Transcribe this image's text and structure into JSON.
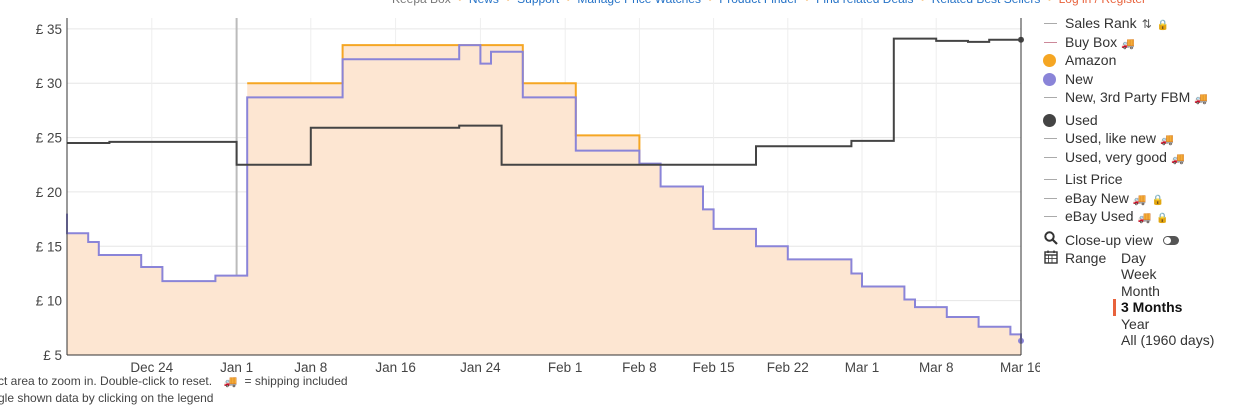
{
  "topnav": {
    "items": [
      "Keepa Box",
      "News",
      "Support",
      "Manage Price Watches",
      "Product Finder",
      "Find related Deals",
      "Related Best Sellers",
      "Log in / Register"
    ]
  },
  "hints": {
    "line1_text": "ct area to zoom in. Double-click to reset.",
    "shipping_text": "= shipping included",
    "line2_text": "gle shown data by clicking on the legend"
  },
  "legend": {
    "items": [
      {
        "id": "sales-rank",
        "label": "Sales Rank",
        "symbol": "line",
        "color": "#aaaaaa",
        "sort_icon": true,
        "lock": true
      },
      {
        "id": "buy-box",
        "label": "Buy Box",
        "symbol": "line",
        "color": "#cc8899",
        "truck": true
      },
      {
        "id": "amazon",
        "label": "Amazon",
        "symbol": "dot",
        "color": "#f5a623"
      },
      {
        "id": "new",
        "label": "New",
        "symbol": "dot",
        "color": "#8a84d8"
      },
      {
        "id": "new-3rd-fbm",
        "label": "New, 3rd Party FBM",
        "symbol": "line",
        "color": "#aaaaaa",
        "truck": true
      },
      {
        "id": "used",
        "label": "Used",
        "symbol": "dot",
        "color": "#444444",
        "gap_before": true
      },
      {
        "id": "used-like-new",
        "label": "Used, like new",
        "symbol": "line",
        "color": "#aaaaaa",
        "truck": true
      },
      {
        "id": "used-very-good",
        "label": "Used, very good",
        "symbol": "line",
        "color": "#aaaaaa",
        "truck": true
      },
      {
        "id": "list-price",
        "label": "List Price",
        "symbol": "line",
        "color": "#aaaaaa",
        "gap_before": true
      },
      {
        "id": "ebay-new",
        "label": "eBay New",
        "symbol": "line",
        "color": "#aaaaaa",
        "truck": true,
        "lock": true
      },
      {
        "id": "ebay-used",
        "label": "eBay Used",
        "symbol": "line",
        "color": "#aaaaaa",
        "truck": true,
        "lock": true
      }
    ],
    "closeup_label": "Close-up view",
    "range_label": "Range",
    "range_options": [
      "Day",
      "Week",
      "Month",
      "3 Months",
      "Year",
      "All (1960 days)"
    ],
    "range_selected": "3 Months"
  },
  "chart_data": {
    "type": "line",
    "currency": "£",
    "x_unit": "date",
    "x_range": [
      "2018-12-16",
      "2019-03-16"
    ],
    "ylim": [
      5,
      36
    ],
    "y_ticks": [
      5,
      10,
      15,
      20,
      25,
      30,
      35
    ],
    "y_tick_labels": [
      "£ 5",
      "£ 10",
      "£ 15",
      "£ 20",
      "£ 25",
      "£ 30",
      "£ 35"
    ],
    "x_ticks": [
      {
        "date": "2018-12-24",
        "label": "Dec 24"
      },
      {
        "date": "2019-01-01",
        "label": "Jan 1"
      },
      {
        "date": "2019-01-08",
        "label": "Jan 8"
      },
      {
        "date": "2019-01-16",
        "label": "Jan 16"
      },
      {
        "date": "2019-01-24",
        "label": "Jan 24"
      },
      {
        "date": "2019-02-01",
        "label": "Feb 1"
      },
      {
        "date": "2019-02-08",
        "label": "Feb 8"
      },
      {
        "date": "2019-02-15",
        "label": "Feb 15"
      },
      {
        "date": "2019-02-22",
        "label": "Feb 22"
      },
      {
        "date": "2019-03-01",
        "label": "Mar 1"
      },
      {
        "date": "2019-03-08",
        "label": "Mar 8"
      },
      {
        "date": "2019-03-16",
        "label": "Mar 16"
      }
    ],
    "marker_line_date": "2019-01-01",
    "grid": true,
    "step": true,
    "series": [
      {
        "name": "Amazon",
        "color": "#f5a623",
        "fill": true,
        "points": [
          [
            "2019-01-02",
            30.0
          ],
          [
            "2019-01-11",
            33.5
          ],
          [
            "2019-01-28",
            30.0
          ],
          [
            "2019-02-02",
            25.2
          ],
          [
            "2019-02-08",
            22.6
          ]
        ]
      },
      {
        "name": "New",
        "color": "#8a84d8",
        "fill": true,
        "end_marker": true,
        "points": [
          [
            "2018-12-16",
            18.0
          ],
          [
            "2018-12-16",
            16.2
          ],
          [
            "2018-12-18",
            15.4
          ],
          [
            "2018-12-19",
            14.2
          ],
          [
            "2018-12-23",
            13.1
          ],
          [
            "2018-12-25",
            11.8
          ],
          [
            "2018-12-30",
            12.3
          ],
          [
            "2019-01-02",
            28.7
          ],
          [
            "2019-01-11",
            32.2
          ],
          [
            "2019-01-22",
            33.5
          ],
          [
            "2019-01-24",
            31.8
          ],
          [
            "2019-01-25",
            32.9
          ],
          [
            "2019-01-28",
            28.7
          ],
          [
            "2019-02-02",
            23.8
          ],
          [
            "2019-02-08",
            22.6
          ],
          [
            "2019-02-10",
            20.5
          ],
          [
            "2019-02-14",
            18.4
          ],
          [
            "2019-02-15",
            16.6
          ],
          [
            "2019-02-19",
            15.0
          ],
          [
            "2019-02-22",
            13.8
          ],
          [
            "2019-02-28",
            12.5
          ],
          [
            "2019-03-01",
            11.3
          ],
          [
            "2019-03-05",
            10.1
          ],
          [
            "2019-03-06",
            9.4
          ],
          [
            "2019-03-09",
            8.5
          ],
          [
            "2019-03-12",
            7.6
          ],
          [
            "2019-03-15",
            6.9
          ],
          [
            "2019-03-16",
            6.3
          ]
        ]
      },
      {
        "name": "Used",
        "color": "#444444",
        "fill": false,
        "end_marker": true,
        "points": [
          [
            "2018-12-16",
            24.5
          ],
          [
            "2018-12-20",
            24.6
          ],
          [
            "2019-01-01",
            22.5
          ],
          [
            "2019-01-08",
            25.9
          ],
          [
            "2019-01-22",
            26.1
          ],
          [
            "2019-01-26",
            22.5
          ],
          [
            "2019-02-19",
            24.2
          ],
          [
            "2019-02-28",
            24.7
          ],
          [
            "2019-03-04",
            34.1
          ],
          [
            "2019-03-08",
            33.9
          ],
          [
            "2019-03-11",
            33.8
          ],
          [
            "2019-03-13",
            34.0
          ],
          [
            "2019-03-16",
            34.0
          ]
        ]
      }
    ]
  }
}
